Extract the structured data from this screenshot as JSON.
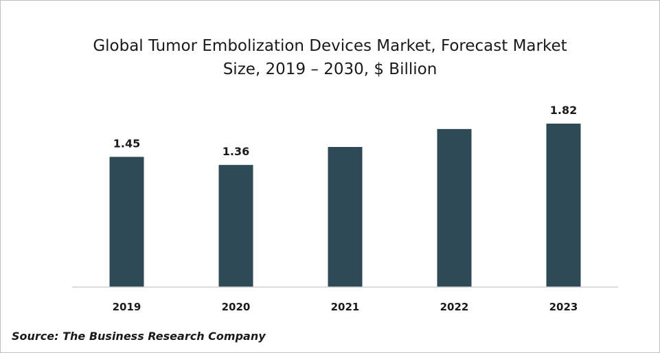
{
  "chart_data": {
    "type": "bar",
    "title_lines": [
      "Global Tumor Embolization Devices Market, Forecast Market",
      "Size, 2019 – 2030, $ Billion"
    ],
    "categories": [
      "2019",
      "2020",
      "2021",
      "2022",
      "2023"
    ],
    "values": [
      1.45,
      1.36,
      1.56,
      1.76,
      1.82
    ],
    "data_labels": [
      "1.45",
      "1.36",
      "",
      "",
      "1.82"
    ],
    "xlabel": "",
    "ylabel": "",
    "ylim": [
      0,
      1.82
    ],
    "grid": false,
    "legend": "none",
    "bar_color": "#2f4a57"
  },
  "source": "Source: The Business Research Company"
}
